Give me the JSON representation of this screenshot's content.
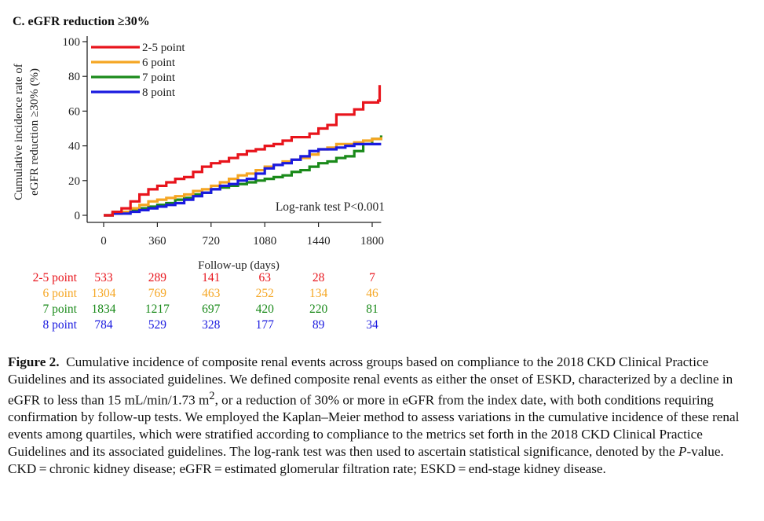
{
  "panel_title": "C. eGFR reduction ≥30%",
  "chart_data": {
    "type": "line",
    "title": "C. eGFR reduction ≥30%",
    "xlabel": "Follow-up (days)",
    "ylabel_lines": [
      "Cumulative incidence rate of",
      "eGFR reduction ≥30% (%)"
    ],
    "xlim": [
      0,
      1860
    ],
    "ylim": [
      0,
      100
    ],
    "x_ticks": [
      0,
      360,
      720,
      1080,
      1440,
      1800
    ],
    "y_ticks": [
      0,
      20,
      40,
      60,
      80,
      100
    ],
    "grid": false,
    "legend_position": "top-left",
    "annotation": "Log-rank test P<0.001",
    "series": [
      {
        "name": "2-5 point",
        "color": "#e8141c",
        "x": [
          0,
          60,
          120,
          180,
          240,
          300,
          360,
          420,
          480,
          540,
          600,
          660,
          720,
          780,
          840,
          900,
          960,
          1020,
          1080,
          1140,
          1200,
          1260,
          1320,
          1380,
          1440,
          1500,
          1560,
          1620,
          1680,
          1740,
          1800,
          1840,
          1850
        ],
        "y": [
          0,
          2,
          4,
          8,
          12,
          15,
          17,
          19,
          21,
          22,
          25,
          28,
          30,
          31,
          33,
          35,
          37,
          38,
          40,
          41,
          43,
          45,
          45,
          47,
          50,
          52,
          58,
          58,
          61,
          65,
          65,
          66,
          75
        ]
      },
      {
        "name": "6 point",
        "color": "#f5a623",
        "x": [
          0,
          60,
          120,
          180,
          240,
          300,
          360,
          420,
          480,
          540,
          600,
          660,
          720,
          780,
          840,
          900,
          960,
          1020,
          1080,
          1140,
          1200,
          1260,
          1320,
          1380,
          1440,
          1500,
          1560,
          1620,
          1680,
          1740,
          1800,
          1860
        ],
        "y": [
          0,
          1,
          2,
          4,
          6,
          8,
          9,
          10,
          11,
          12,
          14,
          15,
          17,
          19,
          21,
          23,
          24,
          26,
          28,
          29,
          31,
          32,
          33,
          35,
          38,
          39,
          41,
          41,
          42,
          43,
          44,
          45
        ]
      },
      {
        "name": "7 point",
        "color": "#1a8a1a",
        "x": [
          0,
          60,
          120,
          180,
          240,
          300,
          360,
          420,
          480,
          540,
          600,
          660,
          720,
          780,
          840,
          900,
          960,
          1020,
          1080,
          1140,
          1200,
          1260,
          1320,
          1380,
          1440,
          1500,
          1560,
          1620,
          1680,
          1740,
          1800,
          1860
        ],
        "y": [
          0,
          1,
          2,
          3,
          4,
          5,
          6,
          7,
          9,
          10,
          12,
          13,
          15,
          16,
          17,
          18,
          19,
          20,
          21,
          22,
          23,
          25,
          26,
          28,
          30,
          31,
          33,
          34,
          37,
          41,
          44,
          46
        ]
      },
      {
        "name": "8 point",
        "color": "#1a1adf",
        "x": [
          0,
          60,
          120,
          180,
          240,
          300,
          360,
          420,
          480,
          540,
          600,
          660,
          720,
          780,
          840,
          900,
          960,
          1020,
          1080,
          1140,
          1200,
          1260,
          1320,
          1380,
          1440,
          1500,
          1560,
          1620,
          1680,
          1740,
          1800,
          1860
        ],
        "y": [
          0,
          1,
          1,
          2,
          3,
          4,
          5,
          6,
          7,
          9,
          11,
          13,
          15,
          17,
          18,
          20,
          21,
          24,
          27,
          29,
          30,
          32,
          34,
          37,
          38,
          38,
          39,
          40,
          41,
          41,
          41,
          41
        ]
      }
    ]
  },
  "risk_table": {
    "times": [
      0,
      360,
      720,
      1080,
      1440,
      1800
    ],
    "rows": [
      {
        "name": "2-5 point",
        "color": "#e8141c",
        "values": [
          "533",
          "289",
          "141",
          "63",
          "28",
          "7"
        ]
      },
      {
        "name": "6 point",
        "color": "#f5a623",
        "values": [
          "1304",
          "769",
          "463",
          "252",
          "134",
          "46"
        ]
      },
      {
        "name": "7 point",
        "color": "#1a8a1a",
        "values": [
          "1834",
          "1217",
          "697",
          "420",
          "220",
          "81"
        ]
      },
      {
        "name": "8 point",
        "color": "#1a1adf",
        "values": [
          "784",
          "529",
          "328",
          "177",
          "89",
          "34"
        ]
      }
    ]
  },
  "caption": {
    "label": "Figure 2.",
    "text_1": "Cumulative incidence of composite renal events across groups based on compliance to the 2018 CKD Clinical Practice Guidelines and its associated guidelines. We defined composite renal events as either the onset of ESKD, characterized by a decline in eGFR to less than 15 mL/min/1.73 m",
    "superscript": "2",
    "text_2": ", or a reduction of 30% or more in eGFR from the index date, with both conditions requiring confirmation by follow-up tests. We employed the Kaplan–Meier method to assess variations in the cumulative incidence of these renal events among quartiles, which were stratified according to compliance to the metrics set forth in the 2018 CKD Clinical Practice Guidelines and its associated guidelines. The log-rank test was then used to ascertain statistical significance, denoted by the ",
    "italic": "P",
    "text_3": "-value. CKD = chronic kidney disease; eGFR = estimated glomerular filtration rate; ESKD = end-stage kidney disease."
  }
}
